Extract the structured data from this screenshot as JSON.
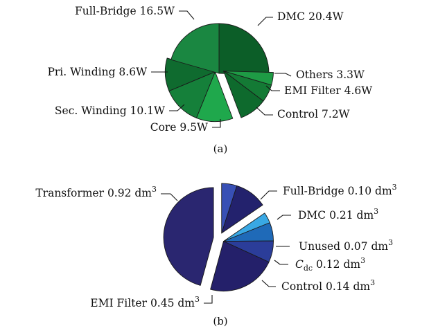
{
  "chart_data": [
    {
      "type": "pie",
      "caption": "(a)",
      "unit": "W",
      "slices": [
        {
          "name": "DMC",
          "value": 20.4,
          "label": "DMC 20.4W",
          "color": "#0c5e28"
        },
        {
          "name": "Others",
          "value": 3.3,
          "label": "Others 3.3W",
          "color": "#1e9b45"
        },
        {
          "name": "EMI Filter",
          "value": 4.6,
          "label": "EMI Filter 4.6W",
          "color": "#147a35"
        },
        {
          "name": "Control",
          "value": 7.2,
          "label": "Control 7.2W",
          "color": "#0e6a2d"
        },
        {
          "name": "Core",
          "value": 9.5,
          "label": "Core 9.5W",
          "color": "#1fa84c"
        },
        {
          "name": "Sec. Winding",
          "value": 10.1,
          "label": "Sec. Winding 10.1W",
          "color": "#15803a"
        },
        {
          "name": "Pri. Winding",
          "value": 8.6,
          "label": "Pri. Winding 8.6W",
          "color": "#0f6b2f"
        },
        {
          "name": "Full-Bridge",
          "value": 16.5,
          "label": "Full-Bridge 16.5W",
          "color": "#1a8741"
        }
      ],
      "groups": [
        {
          "slices": [
            "DMC",
            "Full-Bridge"
          ]
        },
        {
          "slices": [
            "Pri. Winding",
            "Sec. Winding",
            "Core"
          ]
        },
        {
          "slices": [
            "Others",
            "EMI Filter",
            "Control"
          ]
        }
      ]
    },
    {
      "type": "pie",
      "caption": "(b)",
      "unit": "dm3",
      "slices": [
        {
          "name": "Full-Bridge",
          "value": 0.1,
          "label_main": "Full-Bridge 0.10 dm",
          "label_sup": "3",
          "color": "#3850b5"
        },
        {
          "name": "DMC",
          "value": 0.21,
          "label_main": "DMC 0.21 dm",
          "label_sup": "3",
          "color": "#23226d"
        },
        {
          "name": "Unused",
          "value": 0.07,
          "label_main": "Unused 0.07 dm",
          "label_sup": "3",
          "color": "#39a8e4"
        },
        {
          "name": "Cdc",
          "value": 0.12,
          "label_main": "C",
          "label_sub": "dc",
          "label_rest": " 0.12 dm",
          "label_sup": "3",
          "color": "#1f6ab8"
        },
        {
          "name": "Control",
          "value": 0.14,
          "label_main": "Control 0.14 dm",
          "label_sup": "3",
          "color": "#2b3d99"
        },
        {
          "name": "EMI Filter",
          "value": 0.45,
          "label_main": "EMI Filter 0.45 dm",
          "label_sup": "3",
          "color": "#24206a"
        },
        {
          "name": "Transformer",
          "value": 0.92,
          "label_main": "Transformer 0.92 dm",
          "label_sup": "3",
          "color": "#2a2670"
        }
      ],
      "groups": [
        {
          "slices": [
            "Full-Bridge",
            "DMC"
          ]
        },
        {
          "slices": [
            "Unused",
            "Cdc",
            "Control",
            "EMI Filter"
          ]
        },
        {
          "slices": [
            "Transformer"
          ]
        }
      ]
    }
  ]
}
